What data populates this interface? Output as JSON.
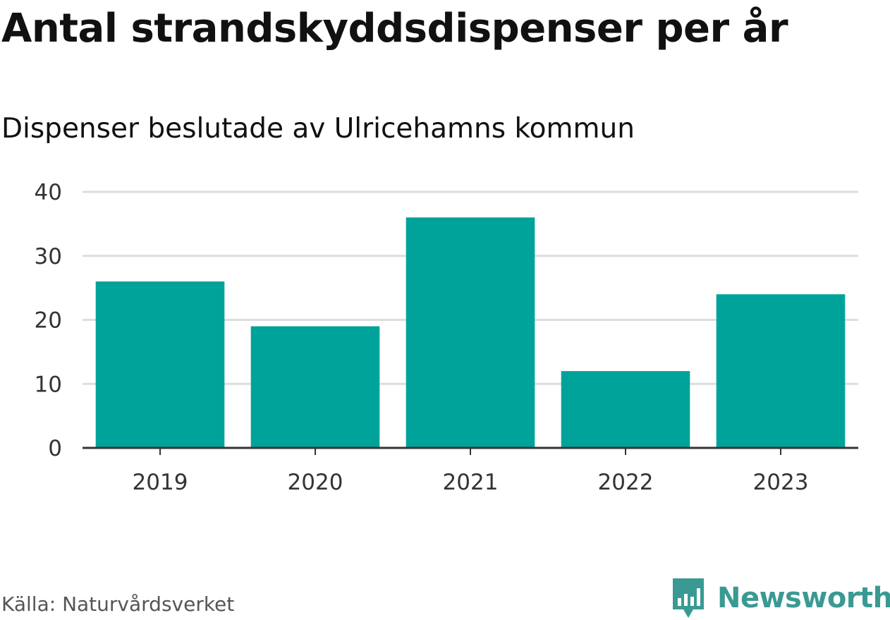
{
  "chart_data": {
    "type": "bar",
    "title": "Antal strandskyddsdispenser per år",
    "subtitle": "Dispenser beslutade av Ulricehamns kommun",
    "categories": [
      "2019",
      "2020",
      "2021",
      "2022",
      "2023"
    ],
    "values": [
      26,
      19,
      36,
      12,
      24
    ],
    "xlabel": "",
    "ylabel": "",
    "ylim": [
      0,
      40
    ],
    "yticks": [
      0,
      10,
      20,
      30,
      40
    ],
    "grid": true,
    "bar_color": "#00a39a"
  },
  "footer": {
    "source": "Källa: Naturvårdsverket",
    "brand": "Newsworthy",
    "brand_icon": "bar-chart-icon",
    "brand_color": "#3a9a93"
  }
}
